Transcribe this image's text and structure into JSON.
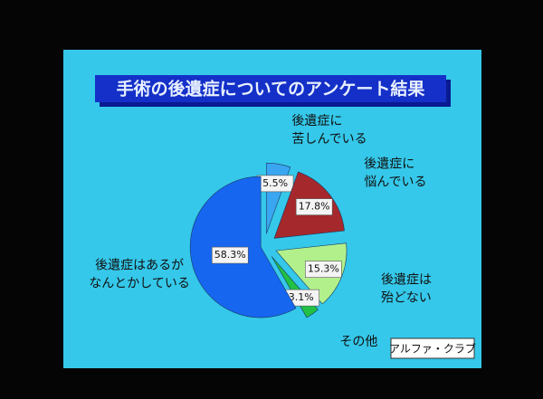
{
  "chart_data": {
    "type": "pie",
    "title": "手術の後遺症についてのアンケート結果",
    "categories": [
      [
        "後遺症に",
        "苦しんでいる"
      ],
      [
        "後遺症に",
        "悩んでいる"
      ],
      [
        "後遺症は",
        "殆どない"
      ],
      [
        "その他"
      ],
      [
        "後遺症はあるが",
        "なんとかしている"
      ]
    ],
    "values": [
      5.5,
      17.8,
      15.3,
      3.1,
      58.3
    ],
    "value_labels": [
      "5.5%",
      "17.8%",
      "15.3%",
      "3.1%",
      "58.3%"
    ],
    "colors": [
      "#3aa6f2",
      "#a5282c",
      "#b2f08c",
      "#22c044",
      "#1666f0"
    ],
    "source": "アルファ・クラブ"
  }
}
